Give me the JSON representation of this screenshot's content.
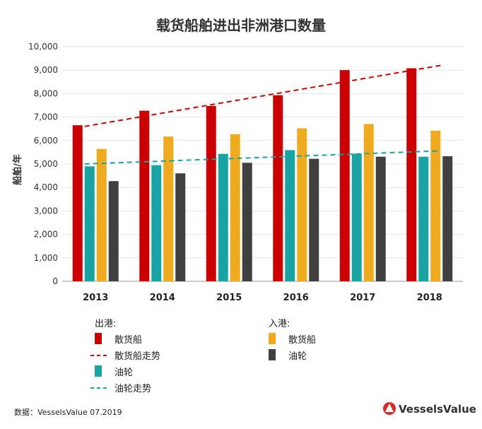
{
  "chart_data": {
    "type": "bar",
    "title": "载货船舶进出非洲港口数量",
    "ylabel": "船舶/年",
    "xlabel": "",
    "ylim": [
      0,
      10000
    ],
    "yticks": [
      "0",
      "1,000",
      "2,000",
      "3,000",
      "4,000",
      "5,000",
      "6,000",
      "7,000",
      "8,000",
      "9,000",
      "10,000"
    ],
    "grid": true,
    "categories": [
      "2013",
      "2014",
      "2015",
      "2016",
      "2017",
      "2018"
    ],
    "series": [
      {
        "name": "散货船",
        "group": "出港",
        "color": "#cc0000",
        "values": [
          6650,
          7270,
          7470,
          7930,
          9000,
          9080
        ]
      },
      {
        "name": "油轮",
        "group": "出港",
        "color": "#1aa3a3",
        "values": [
          4900,
          4950,
          5430,
          5590,
          5440,
          5310
        ]
      },
      {
        "name": "散货船",
        "group": "入港",
        "color": "#f0aa1e",
        "values": [
          5640,
          6170,
          6270,
          6520,
          6700,
          6420
        ]
      },
      {
        "name": "油轮",
        "group": "入港",
        "color": "#404040",
        "values": [
          4270,
          4600,
          5050,
          5220,
          5310,
          5330
        ]
      }
    ],
    "trends": [
      {
        "name": "散货船走势",
        "color": "#cc0000",
        "start": 6600,
        "end": 9200
      },
      {
        "name": "油轮走势",
        "color": "#1aa3a3",
        "start": 5000,
        "end": 5560
      }
    ]
  },
  "legend": {
    "out_header": "出港:",
    "in_header": "入港:",
    "items": [
      {
        "label": "散货船",
        "kind": "bar",
        "color": "#cc0000"
      },
      {
        "label": "散货船走势",
        "kind": "dash",
        "color": "#cc0000"
      },
      {
        "label": "油轮",
        "kind": "bar",
        "color": "#1aa3a3"
      },
      {
        "label": "油轮走势",
        "kind": "dash",
        "color": "#1aa3a3"
      },
      {
        "label": "散货船",
        "kind": "bar",
        "color": "#f0aa1e"
      },
      {
        "label": "油轮",
        "kind": "bar",
        "color": "#404040"
      }
    ]
  },
  "footer": {
    "source": "数据：VesselsValue 07.2019",
    "brand": "VesselsValue",
    "brand_color": "#d62b2b"
  }
}
